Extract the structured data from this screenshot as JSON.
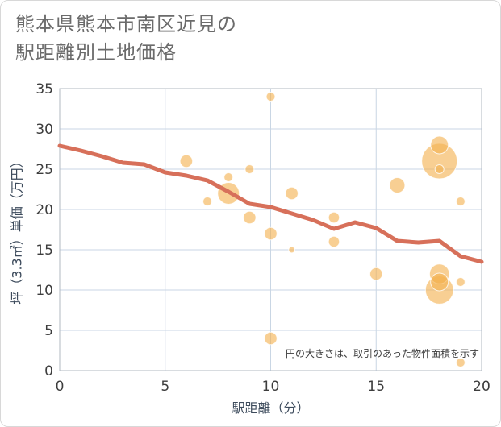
{
  "title_line1": "熊本県熊本市南区近見の",
  "title_line2": "駅距離別土地価格",
  "chart_data": {
    "type": "scatter",
    "xlabel": "駅距離（分）",
    "ylabel": "坪（3.3㎡）単価（万円）",
    "xlim": [
      0,
      20
    ],
    "ylim": [
      0,
      35
    ],
    "x_ticks": [
      "0",
      "5",
      "10",
      "15",
      "20"
    ],
    "y_ticks": [
      "0",
      "5",
      "10",
      "15",
      "20",
      "25",
      "30",
      "35"
    ],
    "grid": true,
    "note": "円の大きさは、取引のあった物件面積を示す",
    "bubbles": [
      {
        "x": 6,
        "y": 26,
        "size": 2
      },
      {
        "x": 7,
        "y": 21,
        "size": 1
      },
      {
        "x": 8,
        "y": 24,
        "size": 1
      },
      {
        "x": 8,
        "y": 22,
        "size": 6
      },
      {
        "x": 9,
        "y": 25,
        "size": 1
      },
      {
        "x": 9,
        "y": 19,
        "size": 2
      },
      {
        "x": 10,
        "y": 34,
        "size": 1
      },
      {
        "x": 10,
        "y": 17,
        "size": 2
      },
      {
        "x": 10,
        "y": 4,
        "size": 2
      },
      {
        "x": 11,
        "y": 22,
        "size": 2
      },
      {
        "x": 11,
        "y": 15,
        "size": 0.5
      },
      {
        "x": 13,
        "y": 19,
        "size": 1.5
      },
      {
        "x": 13,
        "y": 16,
        "size": 1.5
      },
      {
        "x": 15,
        "y": 12,
        "size": 2
      },
      {
        "x": 16,
        "y": 23,
        "size": 3
      },
      {
        "x": 18,
        "y": 28,
        "size": 4
      },
      {
        "x": 18,
        "y": 26,
        "size": 16
      },
      {
        "x": 18,
        "y": 25,
        "size": 1
      },
      {
        "x": 18,
        "y": 12,
        "size": 5
      },
      {
        "x": 18,
        "y": 11,
        "size": 4
      },
      {
        "x": 18,
        "y": 10,
        "size": 10
      },
      {
        "x": 19,
        "y": 21,
        "size": 1
      },
      {
        "x": 19,
        "y": 11,
        "size": 1
      },
      {
        "x": 19,
        "y": 1,
        "size": 1
      }
    ],
    "trend": [
      {
        "x": 0,
        "y": 27.9
      },
      {
        "x": 1,
        "y": 27.3
      },
      {
        "x": 2,
        "y": 26.6
      },
      {
        "x": 3,
        "y": 25.8
      },
      {
        "x": 4,
        "y": 25.6
      },
      {
        "x": 5,
        "y": 24.6
      },
      {
        "x": 6,
        "y": 24.2
      },
      {
        "x": 7,
        "y": 23.6
      },
      {
        "x": 8,
        "y": 22.2
      },
      {
        "x": 9,
        "y": 20.7
      },
      {
        "x": 10,
        "y": 20.3
      },
      {
        "x": 11,
        "y": 19.5
      },
      {
        "x": 12,
        "y": 18.7
      },
      {
        "x": 13,
        "y": 17.6
      },
      {
        "x": 14,
        "y": 18.4
      },
      {
        "x": 15,
        "y": 17.7
      },
      {
        "x": 16,
        "y": 16.1
      },
      {
        "x": 17,
        "y": 15.9
      },
      {
        "x": 18,
        "y": 16.1
      },
      {
        "x": 19,
        "y": 14.2
      },
      {
        "x": 20,
        "y": 13.5
      }
    ],
    "colors": {
      "bubble": "#f3b251",
      "trend": "#d7705a",
      "grid": "#c9d6e4",
      "frame": "#b0b8c2"
    }
  }
}
